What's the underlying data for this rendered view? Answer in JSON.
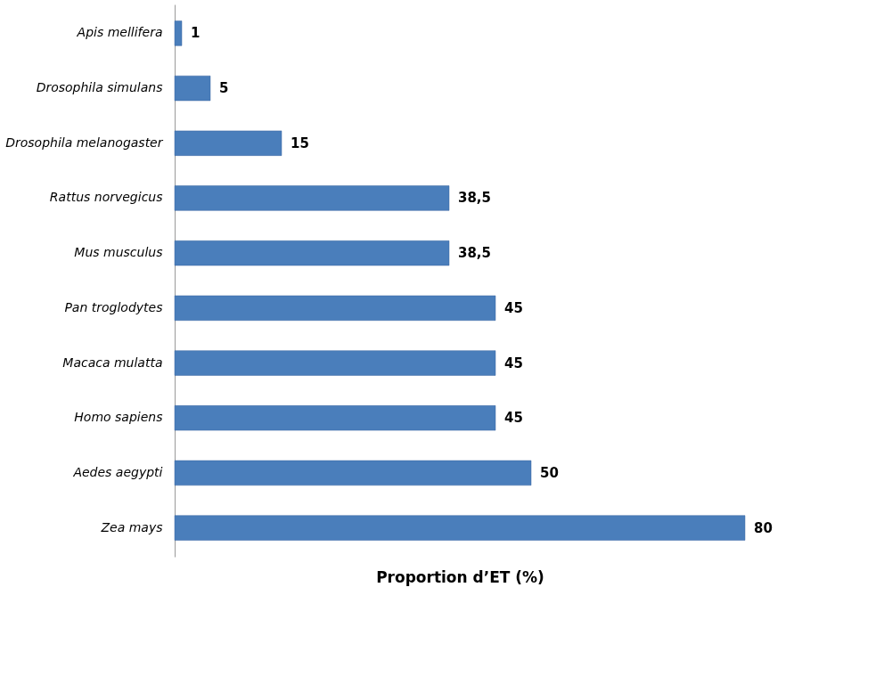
{
  "chart_data": {
    "type": "bar",
    "orientation": "horizontal",
    "xlabel": "Proportion d’ET (%)",
    "categories": [
      "Apis mellifera",
      "Drosophila simulans",
      "Drosophila melanogaster",
      "Rattus norvegicus",
      "Mus musculus",
      "Pan troglodytes",
      "Macaca mulatta",
      "Homo sapiens",
      "Aedes aegypti",
      "Zea mays"
    ],
    "values": [
      1,
      5,
      15,
      38.5,
      38.5,
      45,
      45,
      45,
      50,
      80
    ],
    "value_labels": [
      "1",
      "5",
      "15",
      "38,5",
      "38,5",
      "45",
      "45",
      "45",
      "50",
      "80"
    ],
    "color": "#4a7ebb",
    "grid": false
  }
}
